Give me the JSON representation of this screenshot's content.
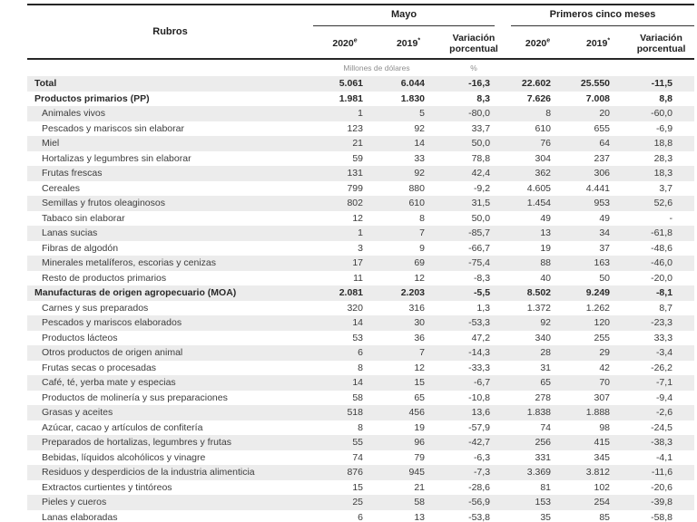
{
  "table": {
    "corner_label": "Rubros",
    "groups": {
      "mayo": "Mayo",
      "five_months": "Primeros cinco meses"
    },
    "subheaders": {
      "y2020": "2020",
      "y2020_sup": "e",
      "y2019": "2019",
      "y2019_sup": "*",
      "variation": "Variación porcentual"
    },
    "units": {
      "millions": "Millones de dólares",
      "percent": "%"
    },
    "colors": {
      "stripe": "#ececec",
      "rule": "#262626",
      "text": "#3c3c3c",
      "units_text": "#8f8f8f"
    },
    "rows": [
      {
        "label": "Total",
        "bold": true,
        "values": [
          "5.061",
          "6.044",
          "-16,3",
          "22.602",
          "25.550",
          "-11,5"
        ]
      },
      {
        "label": "Productos primarios (PP)",
        "bold": true,
        "values": [
          "1.981",
          "1.830",
          "8,3",
          "7.626",
          "7.008",
          "8,8"
        ]
      },
      {
        "label": "Animales vivos",
        "bold": false,
        "values": [
          "1",
          "5",
          "-80,0",
          "8",
          "20",
          "-60,0"
        ]
      },
      {
        "label": "Pescados y mariscos sin elaborar",
        "bold": false,
        "values": [
          "123",
          "92",
          "33,7",
          "610",
          "655",
          "-6,9"
        ]
      },
      {
        "label": "Miel",
        "bold": false,
        "values": [
          "21",
          "14",
          "50,0",
          "76",
          "64",
          "18,8"
        ]
      },
      {
        "label": "Hortalizas y legumbres sin elaborar",
        "bold": false,
        "values": [
          "59",
          "33",
          "78,8",
          "304",
          "237",
          "28,3"
        ]
      },
      {
        "label": "Frutas frescas",
        "bold": false,
        "values": [
          "131",
          "92",
          "42,4",
          "362",
          "306",
          "18,3"
        ]
      },
      {
        "label": "Cereales",
        "bold": false,
        "values": [
          "799",
          "880",
          "-9,2",
          "4.605",
          "4.441",
          "3,7"
        ]
      },
      {
        "label": "Semillas y frutos oleaginosos",
        "bold": false,
        "values": [
          "802",
          "610",
          "31,5",
          "1.454",
          "953",
          "52,6"
        ]
      },
      {
        "label": "Tabaco sin elaborar",
        "bold": false,
        "values": [
          "12",
          "8",
          "50,0",
          "49",
          "49",
          "-"
        ]
      },
      {
        "label": "Lanas sucias",
        "bold": false,
        "values": [
          "1",
          "7",
          "-85,7",
          "13",
          "34",
          "-61,8"
        ]
      },
      {
        "label": "Fibras de algodón",
        "bold": false,
        "values": [
          "3",
          "9",
          "-66,7",
          "19",
          "37",
          "-48,6"
        ]
      },
      {
        "label": "Minerales metalíferos, escorias y cenizas",
        "bold": false,
        "values": [
          "17",
          "69",
          "-75,4",
          "88",
          "163",
          "-46,0"
        ]
      },
      {
        "label": "Resto de productos primarios",
        "bold": false,
        "values": [
          "11",
          "12",
          "-8,3",
          "40",
          "50",
          "-20,0"
        ]
      },
      {
        "label": "Manufacturas de origen agropecuario (MOA)",
        "bold": true,
        "values": [
          "2.081",
          "2.203",
          "-5,5",
          "8.502",
          "9.249",
          "-8,1"
        ]
      },
      {
        "label": "Carnes y sus preparados",
        "bold": false,
        "values": [
          "320",
          "316",
          "1,3",
          "1.372",
          "1.262",
          "8,7"
        ]
      },
      {
        "label": "Pescados y mariscos elaborados",
        "bold": false,
        "values": [
          "14",
          "30",
          "-53,3",
          "92",
          "120",
          "-23,3"
        ]
      },
      {
        "label": "Productos lácteos",
        "bold": false,
        "values": [
          "53",
          "36",
          "47,2",
          "340",
          "255",
          "33,3"
        ]
      },
      {
        "label": "Otros productos de origen animal",
        "bold": false,
        "values": [
          "6",
          "7",
          "-14,3",
          "28",
          "29",
          "-3,4"
        ]
      },
      {
        "label": "Frutas secas o procesadas",
        "bold": false,
        "values": [
          "8",
          "12",
          "-33,3",
          "31",
          "42",
          "-26,2"
        ]
      },
      {
        "label": "Café, té, yerba mate y especias",
        "bold": false,
        "values": [
          "14",
          "15",
          "-6,7",
          "65",
          "70",
          "-7,1"
        ]
      },
      {
        "label": "Productos de molinería y sus preparaciones",
        "bold": false,
        "values": [
          "58",
          "65",
          "-10,8",
          "278",
          "307",
          "-9,4"
        ]
      },
      {
        "label": "Grasas y aceites",
        "bold": false,
        "values": [
          "518",
          "456",
          "13,6",
          "1.838",
          "1.888",
          "-2,6"
        ]
      },
      {
        "label": "Azúcar, cacao y artículos de confitería",
        "bold": false,
        "values": [
          "8",
          "19",
          "-57,9",
          "74",
          "98",
          "-24,5"
        ]
      },
      {
        "label": "Preparados de hortalizas, legumbres y frutas",
        "bold": false,
        "values": [
          "55",
          "96",
          "-42,7",
          "256",
          "415",
          "-38,3"
        ]
      },
      {
        "label": "Bebidas, líquidos alcohólicos y vinagre",
        "bold": false,
        "values": [
          "74",
          "79",
          "-6,3",
          "331",
          "345",
          "-4,1"
        ]
      },
      {
        "label": "Residuos y desperdicios de la industria alimenticia",
        "bold": false,
        "values": [
          "876",
          "945",
          "-7,3",
          "3.369",
          "3.812",
          "-11,6"
        ]
      },
      {
        "label": "Extractos curtientes y tintóreos",
        "bold": false,
        "values": [
          "15",
          "21",
          "-28,6",
          "81",
          "102",
          "-20,6"
        ]
      },
      {
        "label": "Pieles y cueros",
        "bold": false,
        "values": [
          "25",
          "58",
          "-56,9",
          "153",
          "254",
          "-39,8"
        ]
      },
      {
        "label": "Lanas elaboradas",
        "bold": false,
        "values": [
          "6",
          "13",
          "-53,8",
          "35",
          "85",
          "-58,8"
        ]
      }
    ]
  }
}
